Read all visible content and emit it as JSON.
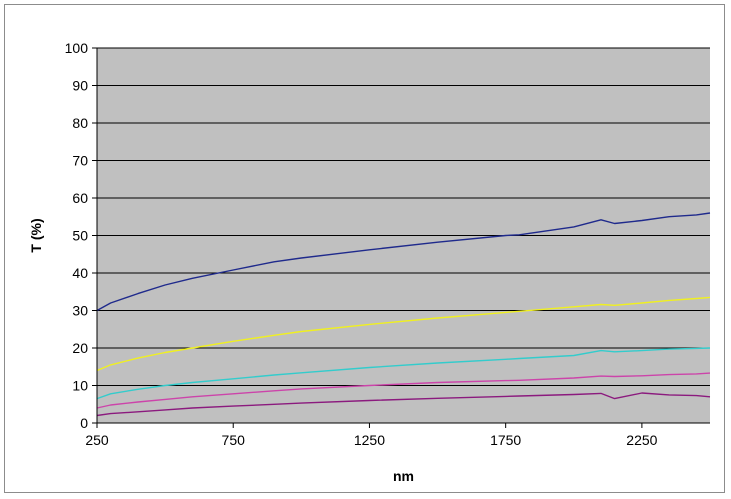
{
  "chart_data": {
    "type": "line",
    "title": "",
    "xlabel": "nm",
    "ylabel": "T (%)",
    "xlim": [
      250,
      2500
    ],
    "ylim": [
      0,
      100
    ],
    "x_ticks": [
      250,
      750,
      1250,
      1750,
      2250
    ],
    "y_ticks": [
      0,
      10,
      20,
      30,
      40,
      50,
      60,
      70,
      80,
      90,
      100
    ],
    "grid": true,
    "plot_background": "#c0c0c0",
    "x": [
      250,
      300,
      400,
      500,
      600,
      750,
      900,
      1000,
      1250,
      1500,
      1750,
      1800,
      2000,
      2100,
      2150,
      2250,
      2350,
      2450,
      2500
    ],
    "series": [
      {
        "color": "#1f2a8c",
        "values": [
          30,
          32,
          34.5,
          36.8,
          38.6,
          40.8,
          43,
          44,
          46.2,
          48.2,
          50,
          50.2,
          52.3,
          54.2,
          53.2,
          54,
          55,
          55.5,
          56
        ]
      },
      {
        "color": "#f0f020",
        "values": [
          14,
          15.5,
          17.3,
          18.8,
          20,
          21.8,
          23.4,
          24.4,
          26.3,
          28,
          29.5,
          29.8,
          31,
          31.6,
          31.4,
          32,
          32.7,
          33.2,
          33.5
        ]
      },
      {
        "color": "#33cccc",
        "values": [
          6.5,
          7.8,
          9,
          10,
          10.8,
          11.8,
          12.8,
          13.4,
          14.8,
          16,
          17,
          17.2,
          18,
          19.3,
          19,
          19.3,
          19.7,
          19.9,
          20
        ]
      },
      {
        "color": "#cc44aa",
        "values": [
          4,
          4.8,
          5.6,
          6.3,
          7,
          7.8,
          8.6,
          9.1,
          10,
          10.8,
          11.3,
          11.4,
          12,
          12.5,
          12.4,
          12.6,
          12.9,
          13.1,
          13.3
        ]
      },
      {
        "color": "#8b1a7e",
        "values": [
          2,
          2.5,
          3,
          3.5,
          4,
          4.5,
          5,
          5.3,
          6,
          6.6,
          7.1,
          7.2,
          7.6,
          7.9,
          6.5,
          8,
          7.5,
          7.3,
          7
        ]
      }
    ]
  }
}
